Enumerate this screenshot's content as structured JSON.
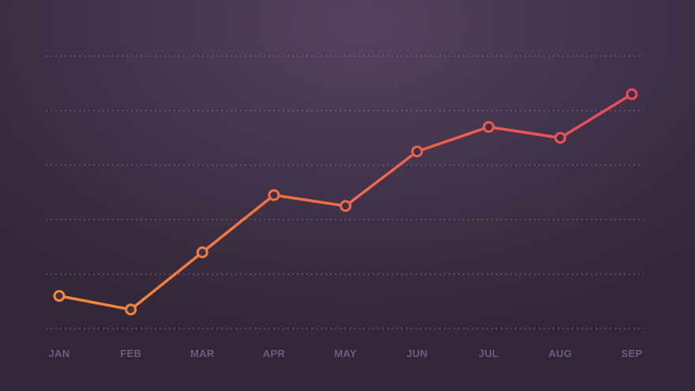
{
  "chart_data": {
    "type": "line",
    "title": "",
    "xlabel": "",
    "ylabel": "",
    "categories": [
      "JAN",
      "FEB",
      "MAR",
      "APR",
      "MAY",
      "JUN",
      "JUL",
      "AUG",
      "SEP"
    ],
    "series": [
      {
        "values": [
          0.6,
          0.35,
          1.4,
          2.45,
          2.25,
          3.25,
          3.7,
          3.5,
          4.3
        ]
      }
    ],
    "ylim": [
      0,
      5
    ],
    "grid": true,
    "legend": "none",
    "colors": {
      "line_start": "#f58a35",
      "line_end": "#ea4a5e",
      "tick_label": "#6e5c78",
      "grid": "#7c6c86",
      "background": "#3a2d41"
    }
  }
}
